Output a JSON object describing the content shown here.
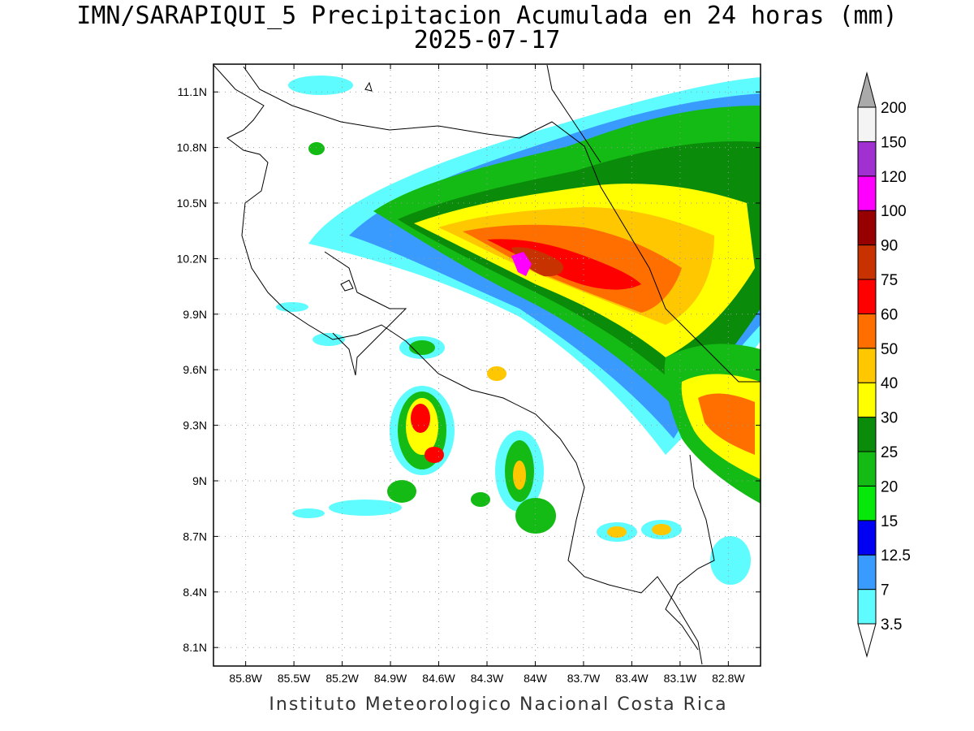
{
  "title": {
    "line1": "IMN/SARAPIQUI_5 Precipitacion Acumulada en 24 horas (mm)",
    "line2": "2025-07-17"
  },
  "footer": "Instituto Meteorologico Nacional Costa Rica",
  "map": {
    "lon_range": [
      -86.0,
      -82.6
    ],
    "lat_range": [
      8.0,
      11.25
    ],
    "lat_ticks": [
      "11.1N",
      "10.8N",
      "10.5N",
      "10.2N",
      "9.9N",
      "9.6N",
      "9.3N",
      "9N",
      "8.7N",
      "8.4N",
      "8.1N"
    ],
    "lon_ticks": [
      "85.8W",
      "85.5W",
      "85.2W",
      "84.9W",
      "84.6W",
      "84.3W",
      "84W",
      "83.7W",
      "83.4W",
      "83.1W",
      "82.8W"
    ],
    "grid": true
  },
  "colorbar": {
    "levels": [
      "3.5",
      "7",
      "12.5",
      "15",
      "20",
      "25",
      "30",
      "40",
      "50",
      "60",
      "75",
      "90",
      "100",
      "120",
      "150",
      "200"
    ],
    "colors": [
      "#5ffcff",
      "#3a9bff",
      "#0000f2",
      "#05e80a",
      "#14bb14",
      "#0a8c0a",
      "#ffff00",
      "#ffc700",
      "#ff6f00",
      "#ff0000",
      "#c83200",
      "#960000",
      "#ff00ff",
      "#a030d0",
      "#f4f4f4",
      "#aaaaaa"
    ]
  }
}
